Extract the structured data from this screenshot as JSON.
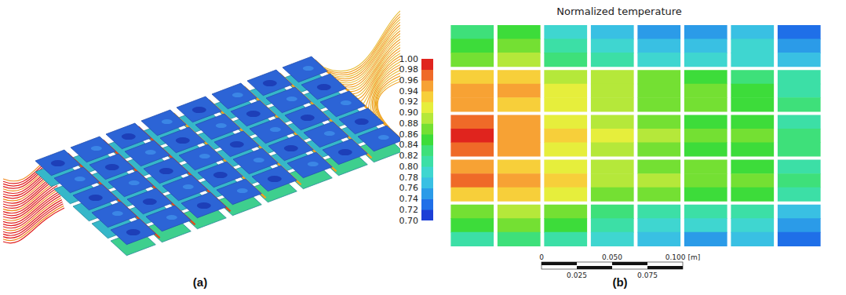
{
  "chart_data": {
    "type": "heatmap",
    "title": "Normalized temperature",
    "cells": [
      [
        [
          0.82,
          0.84,
          0.87
        ],
        [
          0.84,
          0.86,
          0.88
        ],
        [
          0.78,
          0.8,
          0.83
        ],
        [
          0.77,
          0.79,
          0.81
        ],
        [
          0.75,
          0.77,
          0.79
        ],
        [
          0.75,
          0.77,
          0.79
        ],
        [
          0.76,
          0.78,
          0.79
        ],
        [
          0.72,
          0.75,
          0.77
        ]
      ],
      [
        [
          0.93,
          0.95,
          0.95
        ],
        [
          0.92,
          0.94,
          0.93
        ],
        [
          0.89,
          0.91,
          0.91
        ],
        [
          0.88,
          0.89,
          0.89
        ],
        [
          0.86,
          0.87,
          0.87
        ],
        [
          0.85,
          0.86,
          0.86
        ],
        [
          0.83,
          0.84,
          0.85
        ],
        [
          0.8,
          0.81,
          0.82
        ]
      ],
      [
        [
          0.96,
          0.98,
          0.96
        ],
        [
          0.94,
          0.95,
          0.94
        ],
        [
          0.91,
          0.93,
          0.91
        ],
        [
          0.89,
          0.91,
          0.89
        ],
        [
          0.86,
          0.88,
          0.86
        ],
        [
          0.85,
          0.87,
          0.85
        ],
        [
          0.84,
          0.86,
          0.84
        ],
        [
          0.81,
          0.83,
          0.82
        ]
      ],
      [
        [
          0.95,
          0.96,
          0.93
        ],
        [
          0.93,
          0.94,
          0.92
        ],
        [
          0.91,
          0.92,
          0.9
        ],
        [
          0.88,
          0.89,
          0.87
        ],
        [
          0.87,
          0.88,
          0.86
        ],
        [
          0.86,
          0.87,
          0.85
        ],
        [
          0.85,
          0.86,
          0.84
        ],
        [
          0.81,
          0.82,
          0.8
        ]
      ],
      [
        [
          0.86,
          0.84,
          0.8
        ],
        [
          0.88,
          0.86,
          0.83
        ],
        [
          0.86,
          0.84,
          0.81
        ],
        [
          0.82,
          0.8,
          0.78
        ],
        [
          0.81,
          0.79,
          0.76
        ],
        [
          0.8,
          0.78,
          0.75
        ],
        [
          0.8,
          0.78,
          0.76
        ],
        [
          0.77,
          0.75,
          0.73
        ]
      ]
    ],
    "colorbar": {
      "range": [
        0.7,
        1.0
      ],
      "ticks": [
        {
          "value": 0.7,
          "label": "0.70"
        },
        0.72,
        0.74,
        0.76,
        0.78,
        {
          "value": 0.8,
          "label": "0.80"
        },
        0.82,
        0.84,
        0.86,
        0.88,
        {
          "value": 0.9,
          "label": "0.90"
        },
        0.92,
        0.94,
        0.96,
        0.98,
        {
          "value": 1.0,
          "label": "1.00"
        }
      ],
      "colors": [
        "#1c3fd6",
        "#1f6fe8",
        "#2b9be8",
        "#39c0e3",
        "#3fd6d0",
        "#3cdfa6",
        "#3ee07a",
        "#3ddc3a",
        "#74e033",
        "#b5e83a",
        "#e6ee3c",
        "#f7cf3a",
        "#f7a234",
        "#ef6a28",
        "#e0241e"
      ]
    }
  },
  "panel_labels": [
    "(a)",
    "(b)"
  ],
  "scale_bar": {
    "range": [
      0,
      0.1
    ],
    "ticks": [
      0,
      0.025,
      {
        "value": 0.05,
        "label": "0.050"
      },
      0.075,
      {
        "value": 0.1,
        "label": "0.100 [m]"
      }
    ]
  }
}
